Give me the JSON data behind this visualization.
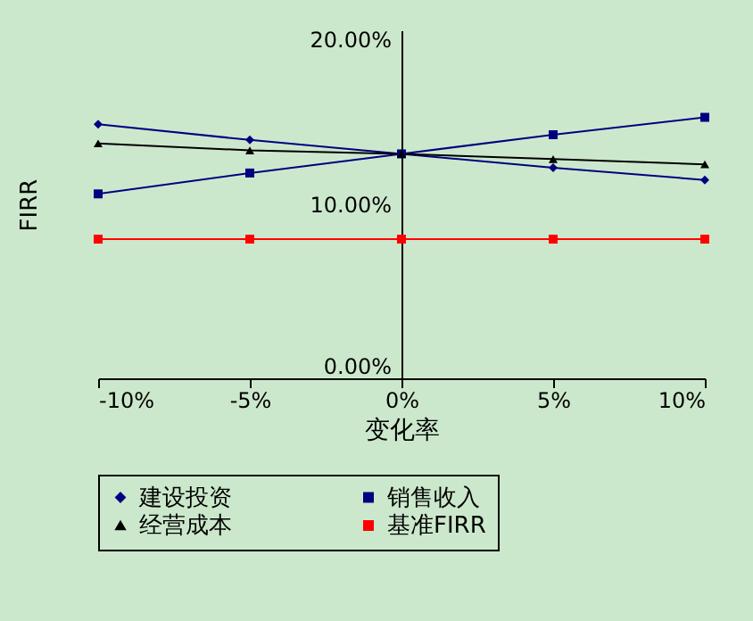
{
  "chart_data": {
    "type": "line",
    "xlabel": "变化率",
    "ylabel": "FIRR",
    "x": [
      -10,
      -5,
      0,
      5,
      10
    ],
    "series": [
      {
        "name": "建设投资",
        "color": "#000080",
        "marker": "diamond",
        "values": [
          14.6,
          13.7,
          12.9,
          12.1,
          11.4
        ]
      },
      {
        "name": "销售收入",
        "color": "#000080",
        "marker": "square",
        "values": [
          10.6,
          11.8,
          12.9,
          14.0,
          15.0
        ]
      },
      {
        "name": "经营成本",
        "color": "#000000",
        "marker": "triangle",
        "values": [
          13.5,
          13.1,
          12.9,
          12.6,
          12.3
        ]
      },
      {
        "name": "基准FIRR",
        "color": "#ff0000",
        "marker": "square",
        "values": [
          8.0,
          8.0,
          8.0,
          8.0,
          8.0
        ]
      }
    ],
    "xlim": [
      -10,
      10
    ],
    "xticks": [
      {
        "value": -10,
        "label": "-10%"
      },
      {
        "value": -5,
        "label": "-5%"
      },
      {
        "value": 0,
        "label": "0%"
      },
      {
        "value": 5,
        "label": "5%"
      },
      {
        "value": 10,
        "label": "10%"
      }
    ],
    "ylim": [
      0,
      20
    ],
    "yticks": [
      {
        "value": 0,
        "label": "0.00%"
      },
      {
        "value": 10,
        "label": "10.00%"
      },
      {
        "value": 20,
        "label": "20.00%"
      }
    ],
    "grid": false,
    "legend": "bottom",
    "line_style": "solid"
  }
}
